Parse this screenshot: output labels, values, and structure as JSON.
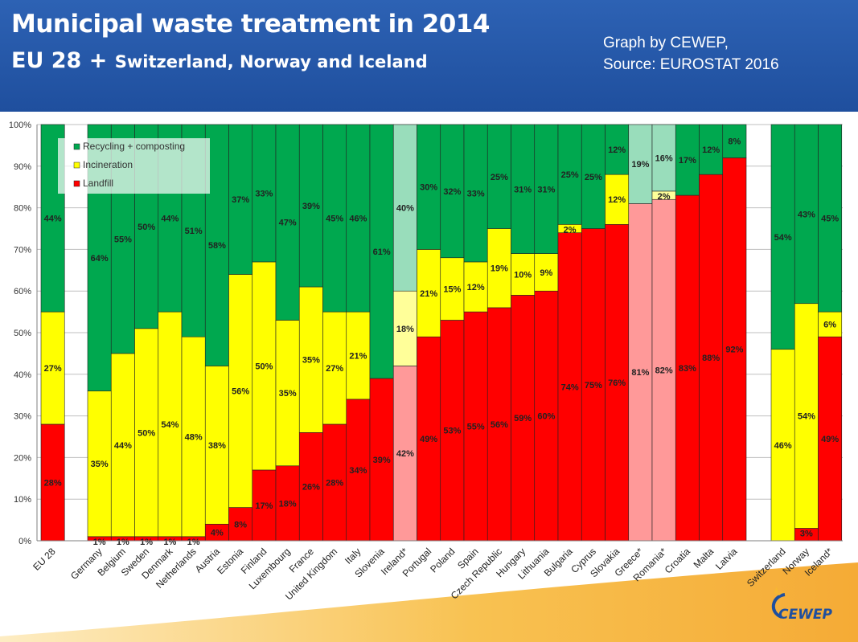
{
  "header": {
    "title_line1": "Municipal waste treatment in 2014",
    "title_line2_main": "EU 28 +",
    "title_line2_rest": "Switzerland, Norway and Iceland",
    "credit_line1": "Graph by CEWEP,",
    "credit_line2": "Source: EUROSTAT 2016",
    "background_color": "#2a5db0"
  },
  "logo": {
    "text": "CEWEP",
    "icon": "cewep-logo-icon"
  },
  "chart_data": {
    "type": "bar",
    "stacked": true,
    "normalized_percent": true,
    "ylim": [
      0,
      100
    ],
    "yticks": [
      "0%",
      "10%",
      "20%",
      "30%",
      "40%",
      "50%",
      "60%",
      "70%",
      "80%",
      "90%",
      "100%"
    ],
    "legend": {
      "placement": "top-left",
      "entries": [
        {
          "label": "Recycling + composting",
          "color": "#00a84f"
        },
        {
          "label": "Incineration",
          "color": "#ffff00"
        },
        {
          "label": "Landfill",
          "color": "#ff0000"
        }
      ]
    },
    "categories": [
      "EU 28",
      "Germany",
      "Belgium",
      "Sweden",
      "Denmark",
      "Netherlands",
      "Austria",
      "Estonia",
      "Finland",
      "Luxembourg",
      "France",
      "United Kingdom",
      "Italy",
      "Slovenia",
      "Ireland*",
      "Portugal",
      "Poland",
      "Spain",
      "Czech Republic",
      "Hungary",
      "Lithuania",
      "Bulgaria",
      "Cyprus",
      "Slovakia",
      "Greece*",
      "Romania*",
      "Croatia",
      "Malta",
      "Latvia",
      "Switzerland",
      "Norway",
      "Iceland*"
    ],
    "highlighted_light": [
      "Ireland*",
      "Greece*",
      "Romania*"
    ],
    "series": [
      {
        "name": "Landfill",
        "color": "#ff0000",
        "light_color": "#ff9999",
        "values": [
          28,
          1,
          1,
          1,
          1,
          1,
          4,
          8,
          17,
          18,
          26,
          28,
          34,
          39,
          42,
          49,
          53,
          55,
          56,
          59,
          60,
          74,
          75,
          76,
          81,
          82,
          83,
          88,
          92,
          0,
          3,
          49
        ],
        "labels": [
          "28%",
          "1%",
          "1%",
          "1%",
          "1%",
          "1%",
          "4%",
          "8%",
          "17%",
          "18%",
          "26%",
          "28%",
          "34%",
          "39%",
          "42%",
          "49%",
          "53%",
          "55%",
          "56%",
          "59%",
          "60%",
          "74%",
          "75%",
          "76%",
          "81%",
          "82%",
          "83%",
          "88%",
          "92%",
          "",
          "3%",
          "49%"
        ]
      },
      {
        "name": "Incineration",
        "color": "#ffff00",
        "light_color": "#ffff99",
        "values": [
          27,
          35,
          44,
          50,
          54,
          48,
          38,
          56,
          50,
          35,
          35,
          27,
          21,
          0,
          18,
          21,
          15,
          12,
          19,
          10,
          9,
          2,
          0,
          12,
          0,
          2,
          0,
          0,
          0,
          46,
          54,
          6
        ],
        "labels": [
          "27%",
          "35%",
          "44%",
          "50%",
          "54%",
          "48%",
          "38%",
          "56%",
          "50%",
          "35%",
          "35%",
          "27%",
          "21%",
          "",
          "18%",
          "21%",
          "15%",
          "12%",
          "19%",
          "10%",
          "9%",
          "2%",
          "",
          "12%",
          "",
          "2%",
          "",
          "",
          "",
          "46%",
          "54%",
          "6%"
        ]
      },
      {
        "name": "Recycling + composting",
        "color": "#00a84f",
        "light_color": "#99ddbb",
        "values": [
          44,
          64,
          55,
          50,
          44,
          51,
          58,
          37,
          33,
          47,
          39,
          45,
          46,
          61,
          40,
          30,
          32,
          33,
          25,
          31,
          31,
          25,
          25,
          12,
          19,
          16,
          17,
          12,
          8,
          54,
          43,
          45
        ],
        "labels": [
          "44%",
          "64%",
          "55%",
          "50%",
          "44%",
          "51%",
          "58%",
          "37%",
          "33%",
          "47%",
          "39%",
          "45%",
          "46%",
          "61%",
          "40%",
          "30%",
          "32%",
          "33%",
          "25%",
          "31%",
          "31%",
          "25%",
          "25%",
          "12%",
          "19%",
          "16%",
          "17%",
          "12%",
          "8%",
          "54%",
          "43%",
          "45%"
        ]
      }
    ]
  }
}
